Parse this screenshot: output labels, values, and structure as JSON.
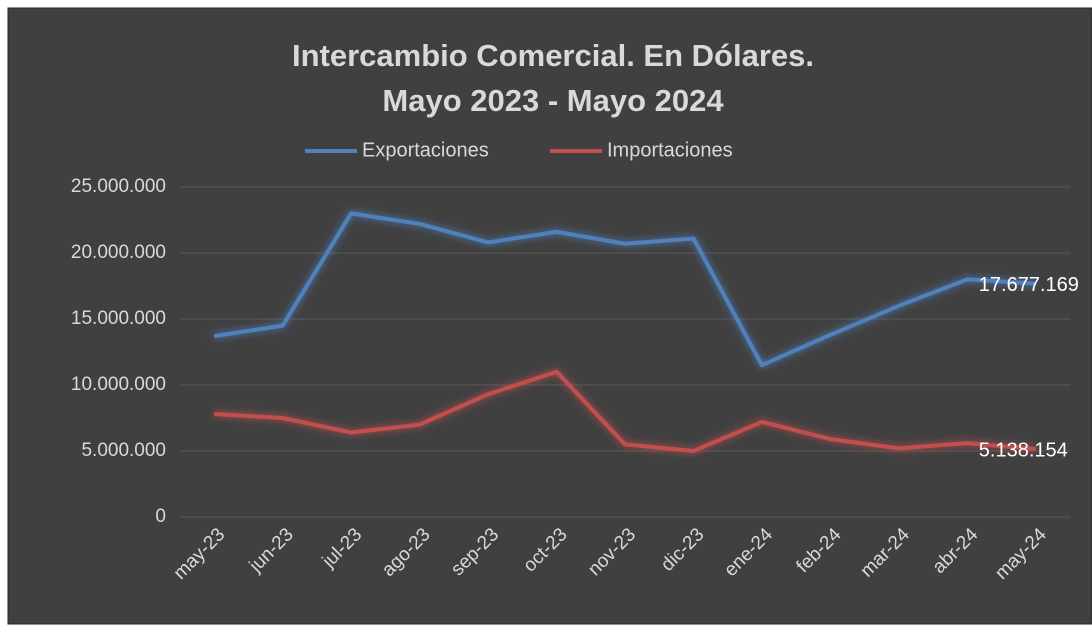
{
  "chart_data": {
    "type": "line",
    "title": [
      "Intercambio Comercial. En Dólares.",
      "Mayo 2023 - Mayo 2024"
    ],
    "categories": [
      "may-23",
      "jun-23",
      "jul-23",
      "ago-23",
      "sep-23",
      "oct-23",
      "nov-23",
      "dic-23",
      "ene-24",
      "feb-24",
      "mar-24",
      "abr-24",
      "may-24"
    ],
    "series": [
      {
        "name": "Exportaciones",
        "color": "#4f81bd",
        "values": [
          13700000,
          14500000,
          23000000,
          22200000,
          20800000,
          21600000,
          20700000,
          21100000,
          11500000,
          13800000,
          16000000,
          18000000,
          17677169
        ],
        "value_labels": [
          null,
          null,
          null,
          null,
          null,
          null,
          null,
          null,
          null,
          null,
          null,
          null,
          "17.677.169"
        ]
      },
      {
        "name": "Importaciones",
        "color": "#c0504d",
        "values": [
          7800000,
          7500000,
          6400000,
          7000000,
          9300000,
          11000000,
          5500000,
          5000000,
          7200000,
          5900000,
          5200000,
          5600000,
          5138154
        ],
        "value_labels": [
          null,
          null,
          null,
          null,
          null,
          null,
          null,
          null,
          null,
          null,
          null,
          null,
          "5.138.154"
        ]
      }
    ],
    "ylim": [
      0,
      25000000
    ],
    "yticks": [
      0,
      {
        "value": 5000000,
        "label": "5.000.000"
      },
      {
        "value": 10000000,
        "label": "10.000.000"
      },
      {
        "value": 15000000,
        "label": "15.000.000"
      },
      {
        "value": 20000000,
        "label": "20.000.000"
      },
      {
        "value": 25000000,
        "label": "25.000.000"
      }
    ],
    "grid": true,
    "legend": "top"
  }
}
